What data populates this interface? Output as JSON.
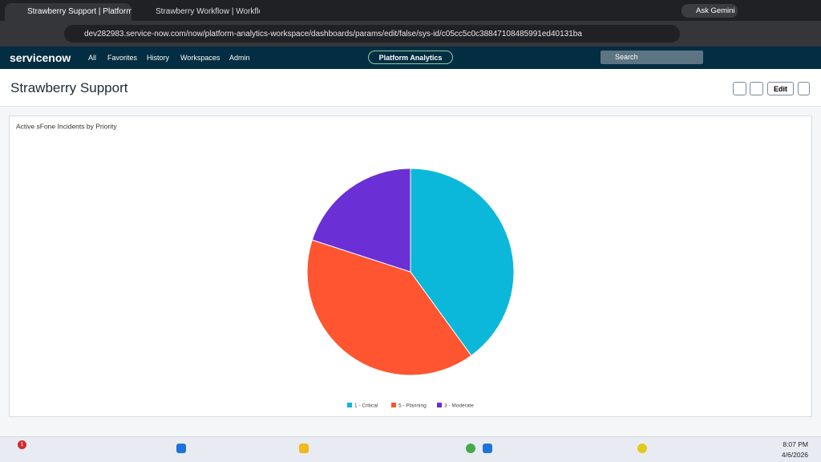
{
  "browser": {
    "tabs": [
      "Strawberry Support | Platform A",
      "Strawberry Workflow | Workflow"
    ],
    "url": "dev282983.service-now.com/now/platform-analytics-workspace/dashboards/params/edit/false/sys-id/c05cc5c0c38847108485991ed40131ba",
    "gemini": "Ask Gemini"
  },
  "nav": {
    "logo": "servicenow",
    "items": [
      "All",
      "Favorites",
      "History",
      "Workspaces",
      "Admin"
    ],
    "center": "Platform Analytics",
    "search": "Search"
  },
  "dashboard": {
    "title": "Strawberry Support",
    "edit": "Edit"
  },
  "chart_data": {
    "type": "pie",
    "title": "Active sFone Incidents by Priority",
    "categories": [
      "1 - Critical",
      "5 - Planning",
      "3 - Moderate"
    ],
    "values": [
      2,
      2,
      1
    ],
    "colors": [
      "#0bb8da",
      "#ff5530",
      "#6b2fd6"
    ]
  },
  "taskbar": {
    "badge": "1",
    "time": "8:07 PM",
    "date": "4/6/2026"
  }
}
